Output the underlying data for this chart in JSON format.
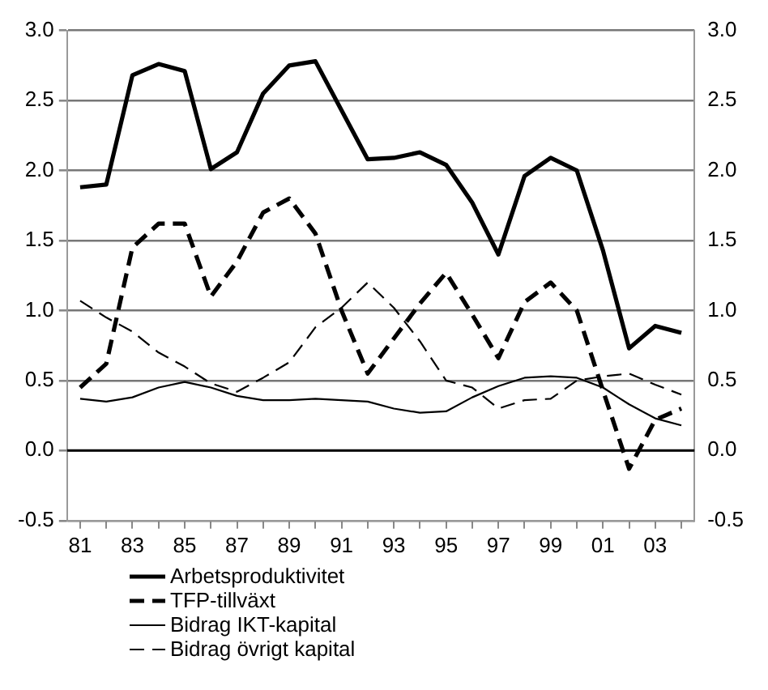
{
  "chart_data": {
    "type": "line",
    "categories": [
      "81",
      null,
      "83",
      null,
      "85",
      null,
      "87",
      null,
      "89",
      null,
      "91",
      null,
      "93",
      null,
      "95",
      null,
      "97",
      null,
      "99",
      null,
      "01",
      null,
      "03",
      null
    ],
    "series": [
      {
        "name": "Arbetsproduktivitet",
        "color": "#000000",
        "line_style": "solid",
        "values": [
          1.88,
          1.9,
          2.68,
          2.76,
          2.71,
          2.01,
          2.13,
          2.55,
          2.75,
          2.78,
          2.43,
          2.08,
          2.09,
          2.13,
          2.04,
          1.77,
          1.4,
          1.96,
          2.09,
          2.0,
          1.43,
          0.73,
          0.89,
          0.84
        ]
      },
      {
        "name": "TFP-tillväxt",
        "color": "#000000",
        "line_style": "dashed",
        "values": [
          0.45,
          0.62,
          1.45,
          1.62,
          1.62,
          1.1,
          1.35,
          1.7,
          1.8,
          1.55,
          1.0,
          0.55,
          0.8,
          1.05,
          1.27,
          0.97,
          0.66,
          1.06,
          1.2,
          1.0,
          0.43,
          -0.13,
          0.22,
          0.3
        ]
      },
      {
        "name": "Bidrag IKT-kapital",
        "color": "#000000",
        "line_style": "solid",
        "values": [
          0.37,
          0.35,
          0.38,
          0.45,
          0.49,
          0.45,
          0.39,
          0.36,
          0.36,
          0.37,
          0.36,
          0.35,
          0.3,
          0.27,
          0.28,
          0.38,
          0.46,
          0.52,
          0.53,
          0.52,
          0.45,
          0.33,
          0.23,
          0.18
        ]
      },
      {
        "name": "Bidrag övrigt kapital",
        "color": "#000000",
        "line_style": "dashed",
        "values": [
          1.07,
          0.95,
          0.85,
          0.7,
          0.6,
          0.48,
          0.42,
          0.52,
          0.63,
          0.88,
          1.02,
          1.2,
          1.02,
          0.78,
          0.5,
          0.45,
          0.3,
          0.36,
          0.37,
          0.5,
          0.53,
          0.55,
          0.47,
          0.4
        ]
      }
    ],
    "ylim": [
      -0.5,
      3.0
    ],
    "yticks": [
      {
        "value": -0.5,
        "label": "-0.5"
      },
      {
        "value": 0,
        "label": "0.0"
      },
      {
        "value": 0.5,
        "label": "0.5"
      },
      {
        "value": 1,
        "label": "1.0"
      },
      {
        "value": 1.5,
        "label": "1.5"
      },
      {
        "value": 2,
        "label": "2.0"
      },
      {
        "value": 2.5,
        "label": "2.5"
      },
      {
        "value": 3,
        "label": "3.0"
      }
    ],
    "y2lim": [
      -0.5,
      3.0
    ],
    "y2ticks": [
      {
        "value": -0.5,
        "label": "-0.5"
      },
      {
        "value": 0,
        "label": "0.0"
      },
      {
        "value": 0.5,
        "label": "0.5"
      },
      {
        "value": 1,
        "label": "1.0"
      },
      {
        "value": 1.5,
        "label": "1.5"
      },
      {
        "value": 2,
        "label": "2.0"
      },
      {
        "value": 2.5,
        "label": "2.5"
      },
      {
        "value": 3,
        "label": "3.0"
      }
    ],
    "ref_lines": [
      {
        "axis": "y",
        "value": 0,
        "color": "#000000",
        "line_style": "solid"
      }
    ],
    "grid": "y",
    "legend": "bottom",
    "marker": "none"
  }
}
